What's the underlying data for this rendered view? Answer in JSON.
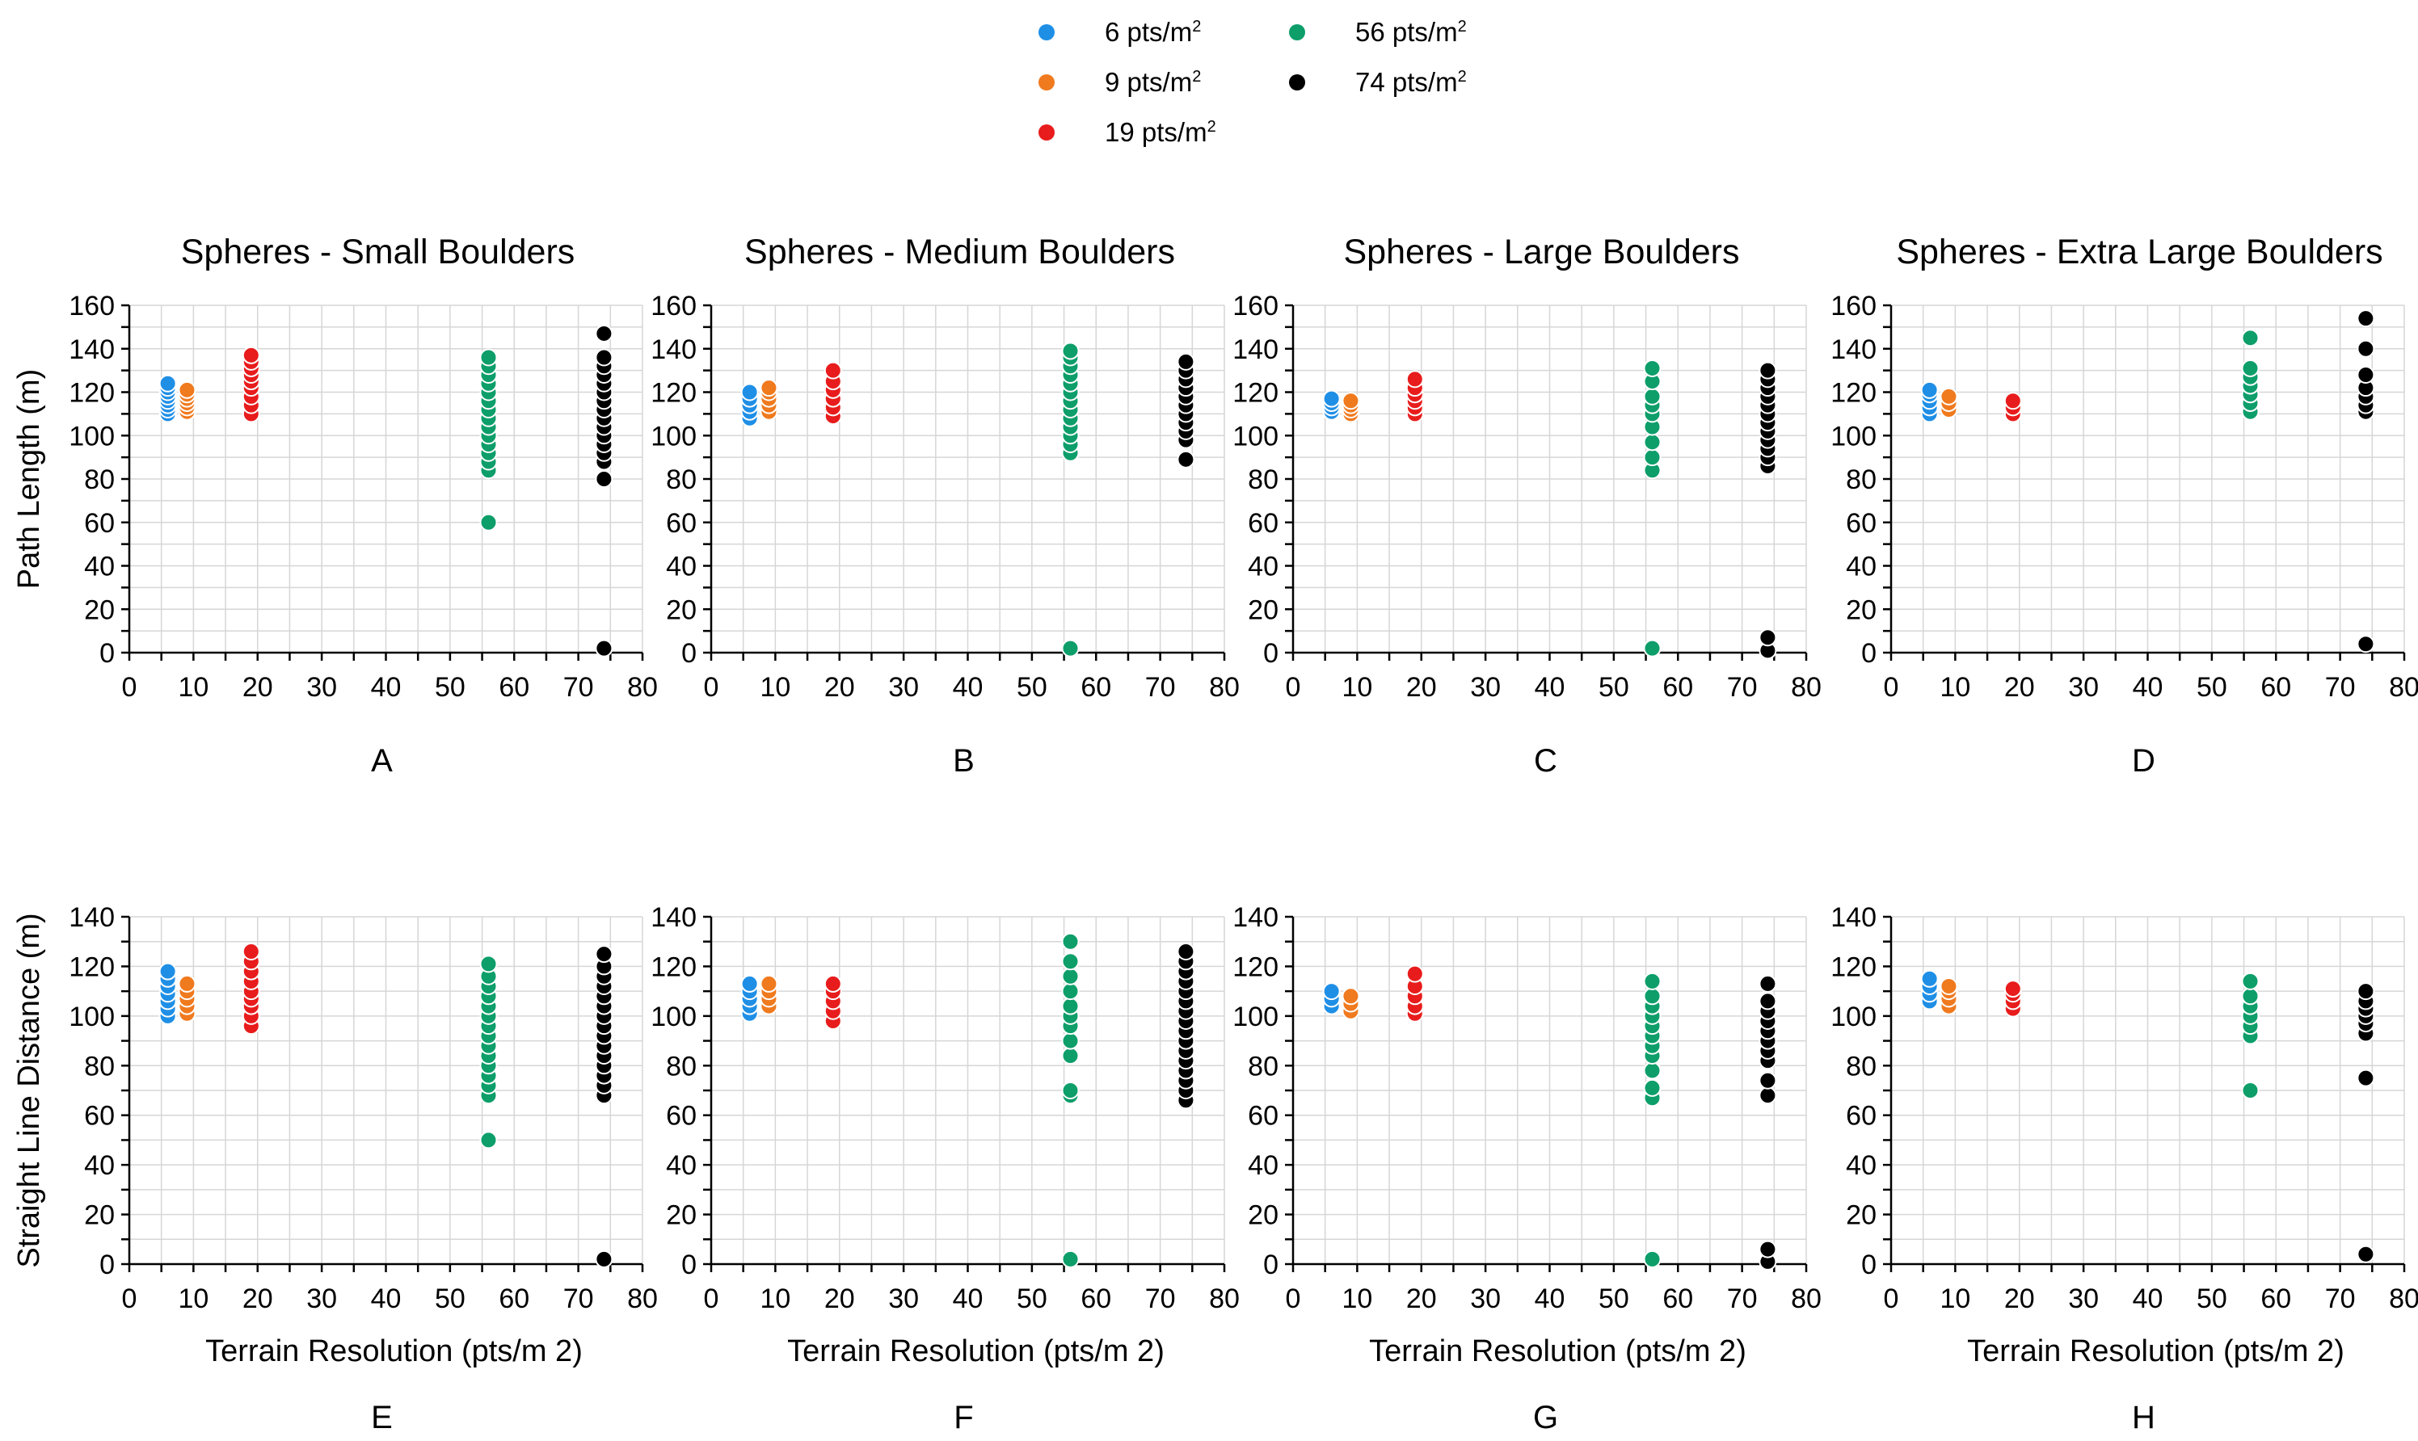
{
  "legend": [
    {
      "key": "r6",
      "base": "6 pts/m",
      "sup": "2",
      "color": "#1f8fe6"
    },
    {
      "key": "r9",
      "base": "9 pts/m",
      "sup": "2",
      "color": "#f07a1e"
    },
    {
      "key": "r19",
      "base": "19 pts/m",
      "sup": "2",
      "color": "#e81c1c"
    },
    {
      "key": "r56",
      "base": "56 pts/m",
      "sup": "2",
      "color": "#0d9e6a"
    },
    {
      "key": "r74",
      "base": "74 pts/m",
      "sup": "2",
      "color": "#000000"
    }
  ],
  "chart_data": [
    {
      "id": "A",
      "type": "scatter",
      "title": "Spheres - Small Boulders",
      "panel_label": "A",
      "xlabel": "",
      "ylabel": "Path Length (m)",
      "xlim": [
        0,
        80
      ],
      "ylim": [
        0,
        160
      ],
      "xticks": [
        0,
        10,
        20,
        30,
        40,
        50,
        60,
        70,
        80
      ],
      "yticks": [
        0,
        20,
        40,
        60,
        80,
        100,
        120,
        140,
        160
      ],
      "series": [
        {
          "name": "6 pts/m2",
          "color": "#1f8fe6",
          "x": 6,
          "values": [
            110,
            112,
            114,
            116,
            118,
            120,
            122,
            124
          ]
        },
        {
          "name": "9 pts/m2",
          "color": "#f07a1e",
          "x": 9,
          "values": [
            111,
            113,
            115,
            117,
            119,
            121
          ]
        },
        {
          "name": "19 pts/m2",
          "color": "#e81c1c",
          "x": 19,
          "values": [
            110,
            114,
            118,
            122,
            125,
            128,
            131,
            134,
            137
          ]
        },
        {
          "name": "56 pts/m2",
          "color": "#0d9e6a",
          "x": 56,
          "values": [
            60,
            84,
            88,
            92,
            96,
            100,
            104,
            108,
            112,
            116,
            120,
            124,
            128,
            132,
            136
          ]
        },
        {
          "name": "74 pts/m2",
          "color": "#000000",
          "x": 74,
          "values": [
            2,
            80,
            88,
            92,
            96,
            100,
            104,
            108,
            112,
            116,
            120,
            124,
            128,
            132,
            136,
            147
          ]
        }
      ]
    },
    {
      "id": "B",
      "type": "scatter",
      "title": "Spheres - Medium Boulders",
      "panel_label": "B",
      "xlabel": "",
      "ylabel": "",
      "xlim": [
        0,
        80
      ],
      "ylim": [
        0,
        160
      ],
      "xticks": [
        0,
        10,
        20,
        30,
        40,
        50,
        60,
        70,
        80
      ],
      "yticks": [
        0,
        20,
        40,
        60,
        80,
        100,
        120,
        140,
        160
      ],
      "series": [
        {
          "name": "6 pts/m2",
          "color": "#1f8fe6",
          "x": 6,
          "values": [
            108,
            111,
            114,
            117,
            120
          ]
        },
        {
          "name": "9 pts/m2",
          "color": "#f07a1e",
          "x": 9,
          "values": [
            111,
            114,
            117,
            120,
            122
          ]
        },
        {
          "name": "19 pts/m2",
          "color": "#e81c1c",
          "x": 19,
          "values": [
            109,
            113,
            117,
            121,
            125,
            130
          ]
        },
        {
          "name": "56 pts/m2",
          "color": "#0d9e6a",
          "x": 56,
          "values": [
            2,
            92,
            96,
            100,
            104,
            108,
            112,
            116,
            120,
            124,
            128,
            132,
            136,
            139
          ]
        },
        {
          "name": "74 pts/m2",
          "color": "#000000",
          "x": 74,
          "values": [
            89,
            98,
            102,
            106,
            110,
            114,
            118,
            122,
            126,
            130,
            134
          ]
        }
      ]
    },
    {
      "id": "C",
      "type": "scatter",
      "title": "Spheres - Large Boulders",
      "panel_label": "C",
      "xlabel": "",
      "ylabel": "",
      "xlim": [
        0,
        80
      ],
      "ylim": [
        0,
        160
      ],
      "xticks": [
        0,
        10,
        20,
        30,
        40,
        50,
        60,
        70,
        80
      ],
      "yticks": [
        0,
        20,
        40,
        60,
        80,
        100,
        120,
        140,
        160
      ],
      "series": [
        {
          "name": "6 pts/m2",
          "color": "#1f8fe6",
          "x": 6,
          "values": [
            111,
            113,
            115,
            117
          ]
        },
        {
          "name": "9 pts/m2",
          "color": "#f07a1e",
          "x": 9,
          "values": [
            110,
            112,
            114,
            116
          ]
        },
        {
          "name": "19 pts/m2",
          "color": "#e81c1c",
          "x": 19,
          "values": [
            110,
            113,
            116,
            119,
            122,
            126
          ]
        },
        {
          "name": "56 pts/m2",
          "color": "#0d9e6a",
          "x": 56,
          "values": [
            2,
            84,
            90,
            97,
            104,
            110,
            114,
            118,
            125,
            131
          ]
        },
        {
          "name": "74 pts/m2",
          "color": "#000000",
          "x": 74,
          "values": [
            1,
            7,
            86,
            90,
            94,
            98,
            102,
            106,
            110,
            114,
            118,
            122,
            126,
            130
          ]
        }
      ]
    },
    {
      "id": "D",
      "type": "scatter",
      "title": "Spheres - Extra Large Boulders",
      "panel_label": "D",
      "xlabel": "",
      "ylabel": "",
      "xlim": [
        0,
        80
      ],
      "ylim": [
        0,
        160
      ],
      "xticks": [
        0,
        10,
        20,
        30,
        40,
        50,
        60,
        70,
        80
      ],
      "yticks": [
        0,
        20,
        40,
        60,
        80,
        100,
        120,
        140,
        160
      ],
      "series": [
        {
          "name": "6 pts/m2",
          "color": "#1f8fe6",
          "x": 6,
          "values": [
            110,
            113,
            116,
            119,
            121
          ]
        },
        {
          "name": "9 pts/m2",
          "color": "#f07a1e",
          "x": 9,
          "values": [
            112,
            115,
            118
          ]
        },
        {
          "name": "19 pts/m2",
          "color": "#e81c1c",
          "x": 19,
          "values": [
            110,
            113,
            116
          ]
        },
        {
          "name": "56 pts/m2",
          "color": "#0d9e6a",
          "x": 56,
          "values": [
            111,
            115,
            119,
            123,
            127,
            131,
            145
          ]
        },
        {
          "name": "74 pts/m2",
          "color": "#000000",
          "x": 74,
          "values": [
            4,
            111,
            114,
            118,
            122,
            128,
            140,
            154
          ]
        }
      ]
    },
    {
      "id": "E",
      "type": "scatter",
      "title": "",
      "panel_label": "E",
      "xlabel": "Terrain Resolution (pts/m 2)",
      "ylabel": "Straight Line Distance (m)",
      "xlim": [
        0,
        80
      ],
      "ylim": [
        0,
        140
      ],
      "xticks": [
        0,
        10,
        20,
        30,
        40,
        50,
        60,
        70,
        80
      ],
      "yticks": [
        0,
        20,
        40,
        60,
        80,
        100,
        120,
        140
      ],
      "series": [
        {
          "name": "6 pts/m2",
          "color": "#1f8fe6",
          "x": 6,
          "values": [
            100,
            103,
            106,
            109,
            112,
            115,
            118
          ]
        },
        {
          "name": "9 pts/m2",
          "color": "#f07a1e",
          "x": 9,
          "values": [
            101,
            104,
            107,
            110,
            113
          ]
        },
        {
          "name": "19 pts/m2",
          "color": "#e81c1c",
          "x": 19,
          "values": [
            96,
            100,
            104,
            107,
            110,
            114,
            118,
            122,
            126
          ]
        },
        {
          "name": "56 pts/m2",
          "color": "#0d9e6a",
          "x": 56,
          "values": [
            50,
            68,
            72,
            76,
            80,
            84,
            88,
            92,
            96,
            100,
            104,
            108,
            112,
            116,
            121
          ]
        },
        {
          "name": "74 pts/m2",
          "color": "#000000",
          "x": 74,
          "values": [
            2,
            68,
            72,
            76,
            80,
            84,
            88,
            92,
            96,
            100,
            104,
            108,
            112,
            116,
            120,
            125
          ]
        }
      ]
    },
    {
      "id": "F",
      "type": "scatter",
      "title": "",
      "panel_label": "F",
      "xlabel": "Terrain Resolution (pts/m 2)",
      "ylabel": "",
      "xlim": [
        0,
        80
      ],
      "ylim": [
        0,
        140
      ],
      "xticks": [
        0,
        10,
        20,
        30,
        40,
        50,
        60,
        70,
        80
      ],
      "yticks": [
        0,
        20,
        40,
        60,
        80,
        100,
        120,
        140
      ],
      "series": [
        {
          "name": "6 pts/m2",
          "color": "#1f8fe6",
          "x": 6,
          "values": [
            101,
            104,
            107,
            110,
            113
          ]
        },
        {
          "name": "9 pts/m2",
          "color": "#f07a1e",
          "x": 9,
          "values": [
            104,
            107,
            110,
            113
          ]
        },
        {
          "name": "19 pts/m2",
          "color": "#e81c1c",
          "x": 19,
          "values": [
            98,
            102,
            106,
            110,
            113
          ]
        },
        {
          "name": "56 pts/m2",
          "color": "#0d9e6a",
          "x": 56,
          "values": [
            2,
            68,
            70,
            84,
            90,
            96,
            100,
            104,
            110,
            116,
            122,
            130
          ]
        },
        {
          "name": "74 pts/m2",
          "color": "#000000",
          "x": 74,
          "values": [
            66,
            70,
            74,
            78,
            82,
            86,
            90,
            94,
            98,
            102,
            106,
            110,
            114,
            118,
            122,
            126
          ]
        }
      ]
    },
    {
      "id": "G",
      "type": "scatter",
      "title": "",
      "panel_label": "G",
      "xlabel": "Terrain Resolution (pts/m 2)",
      "ylabel": "",
      "xlim": [
        0,
        80
      ],
      "ylim": [
        0,
        140
      ],
      "xticks": [
        0,
        10,
        20,
        30,
        40,
        50,
        60,
        70,
        80
      ],
      "yticks": [
        0,
        20,
        40,
        60,
        80,
        100,
        120,
        140
      ],
      "series": [
        {
          "name": "6 pts/m2",
          "color": "#1f8fe6",
          "x": 6,
          "values": [
            104,
            107,
            110
          ]
        },
        {
          "name": "9 pts/m2",
          "color": "#f07a1e",
          "x": 9,
          "values": [
            102,
            105,
            108
          ]
        },
        {
          "name": "19 pts/m2",
          "color": "#e81c1c",
          "x": 19,
          "values": [
            101,
            104,
            108,
            112,
            117
          ]
        },
        {
          "name": "56 pts/m2",
          "color": "#0d9e6a",
          "x": 56,
          "values": [
            2,
            67,
            71,
            78,
            84,
            88,
            92,
            96,
            100,
            104,
            108,
            114
          ]
        },
        {
          "name": "74 pts/m2",
          "color": "#000000",
          "x": 74,
          "values": [
            1,
            6,
            68,
            74,
            82,
            86,
            90,
            94,
            98,
            102,
            106,
            113
          ]
        }
      ]
    },
    {
      "id": "H",
      "type": "scatter",
      "title": "",
      "panel_label": "H",
      "xlabel": "Terrain Resolution (pts/m 2)",
      "ylabel": "",
      "xlim": [
        0,
        80
      ],
      "ylim": [
        0,
        140
      ],
      "xticks": [
        0,
        10,
        20,
        30,
        40,
        50,
        60,
        70,
        80
      ],
      "yticks": [
        0,
        20,
        40,
        60,
        80,
        100,
        120,
        140
      ],
      "series": [
        {
          "name": "6 pts/m2",
          "color": "#1f8fe6",
          "x": 6,
          "values": [
            106,
            109,
            112,
            115
          ]
        },
        {
          "name": "9 pts/m2",
          "color": "#f07a1e",
          "x": 9,
          "values": [
            104,
            107,
            110,
            112
          ]
        },
        {
          "name": "19 pts/m2",
          "color": "#e81c1c",
          "x": 19,
          "values": [
            103,
            106,
            109,
            111
          ]
        },
        {
          "name": "56 pts/m2",
          "color": "#0d9e6a",
          "x": 56,
          "values": [
            70,
            92,
            96,
            100,
            104,
            108,
            114
          ]
        },
        {
          "name": "74 pts/m2",
          "color": "#000000",
          "x": 74,
          "values": [
            4,
            75,
            93,
            97,
            100,
            103,
            106,
            110
          ]
        }
      ]
    }
  ]
}
